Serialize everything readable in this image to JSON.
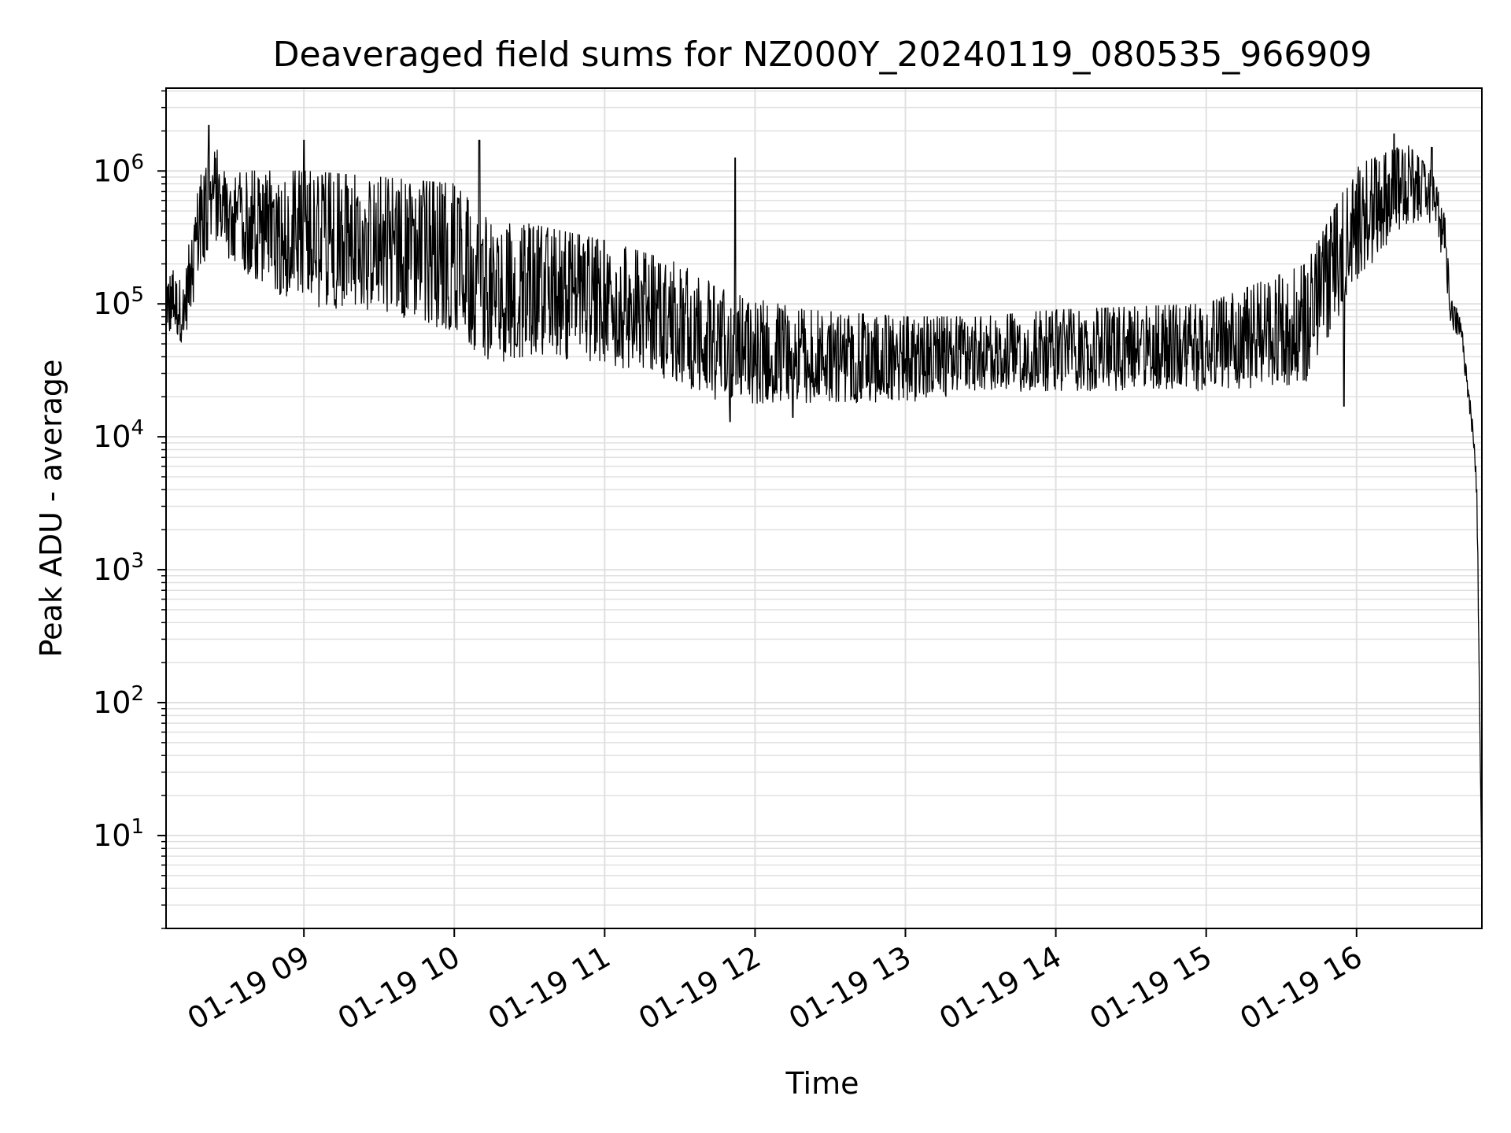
{
  "chart_data": {
    "type": "line",
    "title": "Deaveraged field sums for NZ000Y_20240119_080535_966909",
    "xlabel": "Time",
    "ylabel": "Peak ADU - average",
    "yscale": "log",
    "ylim": [
      2,
      4200000
    ],
    "xlim": [
      "2024-01-19 08:05",
      "2024-01-19 16:50"
    ],
    "grid": true,
    "legend": "none",
    "colors": {
      "line": "#000000",
      "grid": "#e0e0e0",
      "axes": "#000000"
    },
    "xticks": [
      {
        "value": "2024-01-19 09:00",
        "label": "01-19 09"
      },
      {
        "value": "2024-01-19 10:00",
        "label": "01-19 10"
      },
      {
        "value": "2024-01-19 11:00",
        "label": "01-19 11"
      },
      {
        "value": "2024-01-19 12:00",
        "label": "01-19 12"
      },
      {
        "value": "2024-01-19 13:00",
        "label": "01-19 13"
      },
      {
        "value": "2024-01-19 14:00",
        "label": "01-19 14"
      },
      {
        "value": "2024-01-19 15:00",
        "label": "01-19 15"
      },
      {
        "value": "2024-01-19 16:00",
        "label": "01-19 16"
      }
    ],
    "yticks": [
      {
        "value": 10,
        "base": "10",
        "exp": "1"
      },
      {
        "value": 100,
        "base": "10",
        "exp": "2"
      },
      {
        "value": 1000,
        "base": "10",
        "exp": "3"
      },
      {
        "value": 10000,
        "base": "10",
        "exp": "4"
      },
      {
        "value": 100000,
        "base": "10",
        "exp": "5"
      },
      {
        "value": 1000000,
        "base": "10",
        "exp": "6"
      }
    ],
    "series": [
      {
        "description": "envelope of the noisy trace (low/high per time segment)",
        "segments": [
          {
            "t": "2024-01-19 08:05",
            "low": 60000,
            "high": 200000
          },
          {
            "t": "2024-01-19 08:12",
            "low": 50000,
            "high": 150000
          },
          {
            "t": "2024-01-19 08:18",
            "low": 150000,
            "high": 900000
          },
          {
            "t": "2024-01-19 08:24",
            "low": 300000,
            "high": 1600000
          },
          {
            "t": "2024-01-19 08:30",
            "low": 200000,
            "high": 1000000
          },
          {
            "t": "2024-01-19 09:00",
            "low": 90000,
            "high": 1000000
          },
          {
            "t": "2024-01-19 09:30",
            "low": 90000,
            "high": 900000
          },
          {
            "t": "2024-01-19 10:00",
            "low": 60000,
            "high": 800000
          },
          {
            "t": "2024-01-19 10:15",
            "low": 35000,
            "high": 400000
          },
          {
            "t": "2024-01-19 10:30",
            "low": 40000,
            "high": 400000
          },
          {
            "t": "2024-01-19 11:00",
            "low": 35000,
            "high": 300000
          },
          {
            "t": "2024-01-19 11:30",
            "low": 25000,
            "high": 200000
          },
          {
            "t": "2024-01-19 11:50",
            "low": 17000,
            "high": 120000
          },
          {
            "t": "2024-01-19 12:20",
            "low": 18000,
            "high": 90000
          },
          {
            "t": "2024-01-19 13:00",
            "low": 18000,
            "high": 80000
          },
          {
            "t": "2024-01-19 13:30",
            "low": 22000,
            "high": 80000
          },
          {
            "t": "2024-01-19 14:00",
            "low": 22000,
            "high": 90000
          },
          {
            "t": "2024-01-19 15:00",
            "low": 22000,
            "high": 100000
          },
          {
            "t": "2024-01-19 15:40",
            "low": 25000,
            "high": 200000
          },
          {
            "t": "2024-01-19 16:00",
            "low": 150000,
            "high": 1100000
          },
          {
            "t": "2024-01-19 16:20",
            "low": 400000,
            "high": 1600000
          },
          {
            "t": "2024-01-19 16:30",
            "low": 400000,
            "high": 1000000
          },
          {
            "t": "2024-01-19 16:35",
            "low": 200000,
            "high": 500000
          },
          {
            "t": "2024-01-19 16:38",
            "low": 60000,
            "high": 120000
          },
          {
            "t": "2024-01-19 16:42",
            "low": 50000,
            "high": 70000
          },
          {
            "t": "2024-01-19 16:44",
            "low": 20000,
            "high": 30000
          },
          {
            "t": "2024-01-19 16:46",
            "low": 10000,
            "high": 15000
          },
          {
            "t": "2024-01-19 16:48",
            "low": 3000,
            "high": 5000
          },
          {
            "t": "2024-01-19 16:50",
            "low": 4,
            "high": 5
          }
        ],
        "spikes": [
          {
            "t": "2024-01-19 08:22",
            "value": 2200000
          },
          {
            "t": "2024-01-19 09:00",
            "value": 1700000
          },
          {
            "t": "2024-01-19 10:10",
            "value": 1700000
          },
          {
            "t": "2024-01-19 11:52",
            "value": 1250000
          },
          {
            "t": "2024-01-19 16:15",
            "value": 1900000
          },
          {
            "t": "2024-01-19 16:30",
            "value": 1500000
          }
        ],
        "dropouts": [
          {
            "t": "2024-01-19 15:55",
            "value": 17000
          },
          {
            "t": "2024-01-19 11:50",
            "value": 13000
          },
          {
            "t": "2024-01-19 12:15",
            "value": 14000
          }
        ]
      }
    ]
  }
}
